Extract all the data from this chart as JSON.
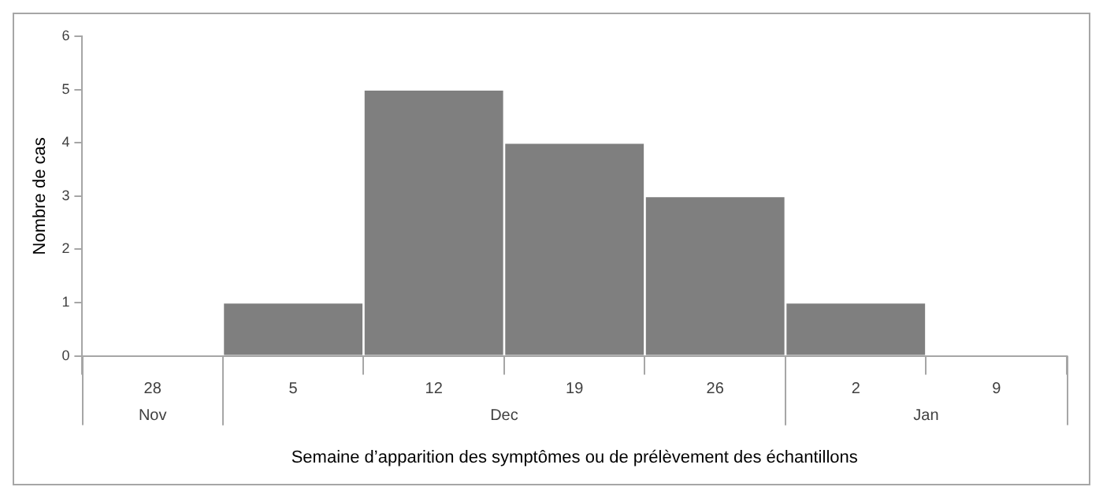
{
  "chart_data": {
    "type": "bar",
    "xlabel": "Semaine d’apparition des symptômes ou de prélèvement des échantillons",
    "ylabel": "Nombre de cas",
    "categories": [
      "28",
      "5",
      "12",
      "19",
      "26",
      "2",
      "9"
    ],
    "values": [
      0,
      1,
      5,
      4,
      3,
      1,
      0
    ],
    "color": "#7f7f7f",
    "ylim": [
      0,
      6
    ],
    "yticks": [
      0,
      1,
      2,
      3,
      4,
      5,
      6
    ],
    "grid": false,
    "legend": false,
    "annotations": [
      "Nov",
      "Dec",
      "Jan"
    ]
  }
}
